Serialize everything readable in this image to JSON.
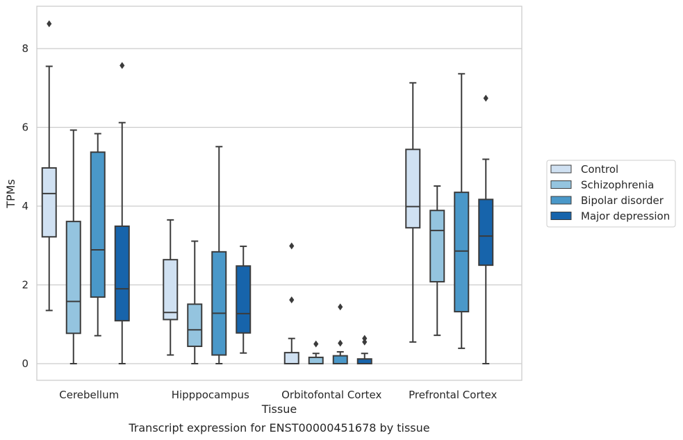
{
  "caption": "Transcript expression for ENST00000451678 by tissue",
  "chart_data": {
    "type": "box",
    "xlabel": "Tissue",
    "ylabel": "TPMs",
    "ylim": [
      -0.4,
      9.1
    ],
    "yticks": [
      0,
      2,
      4,
      6,
      8
    ],
    "categories": [
      "Cerebellum",
      "Hipppocampus",
      "Orbitofontal Cortex",
      "Prefrontal Cortex"
    ],
    "grid": "horizontal",
    "legend_position": "right",
    "series": [
      {
        "name": "Control",
        "color": "#d0e1f2",
        "boxes": [
          {
            "whislo": 1.35,
            "q1": 3.22,
            "med": 4.32,
            "q3": 4.97,
            "whishi": 7.55,
            "fliers": [
              8.63
            ]
          },
          {
            "whislo": 0.22,
            "q1": 1.12,
            "med": 1.3,
            "q3": 2.64,
            "whishi": 3.65,
            "fliers": []
          },
          {
            "whislo": 0.0,
            "q1": 0.0,
            "med": 0.0,
            "q3": 0.28,
            "whishi": 0.64,
            "fliers": [
              1.62,
              2.99
            ]
          },
          {
            "whislo": 0.55,
            "q1": 3.45,
            "med": 3.99,
            "q3": 5.44,
            "whishi": 7.13,
            "fliers": []
          }
        ]
      },
      {
        "name": "Schizophrenia",
        "color": "#94c4df",
        "boxes": [
          {
            "whislo": 0.0,
            "q1": 0.77,
            "med": 1.58,
            "q3": 3.61,
            "whishi": 5.93,
            "fliers": []
          },
          {
            "whislo": 0.0,
            "q1": 0.44,
            "med": 0.86,
            "q3": 1.51,
            "whishi": 3.11,
            "fliers": []
          },
          {
            "whislo": 0.0,
            "q1": 0.0,
            "med": 0.0,
            "q3": 0.16,
            "whishi": 0.26,
            "fliers": [
              0.5
            ]
          },
          {
            "whislo": 0.72,
            "q1": 2.08,
            "med": 3.38,
            "q3": 3.89,
            "whishi": 4.51,
            "fliers": []
          }
        ]
      },
      {
        "name": "Bipolar disorder",
        "color": "#4a98c9",
        "boxes": [
          {
            "whislo": 0.71,
            "q1": 1.69,
            "med": 2.89,
            "q3": 5.37,
            "whishi": 5.84,
            "fliers": []
          },
          {
            "whislo": 0.0,
            "q1": 0.22,
            "med": 1.28,
            "q3": 2.84,
            "whishi": 5.51,
            "fliers": []
          },
          {
            "whislo": 0.0,
            "q1": 0.0,
            "med": 0.0,
            "q3": 0.2,
            "whishi": 0.3,
            "fliers": [
              0.52,
              1.44
            ]
          },
          {
            "whislo": 0.39,
            "q1": 1.32,
            "med": 2.86,
            "q3": 4.35,
            "whishi": 7.36,
            "fliers": []
          }
        ]
      },
      {
        "name": "Major depression",
        "color": "#1764ab",
        "boxes": [
          {
            "whislo": 0.0,
            "q1": 1.09,
            "med": 1.9,
            "q3": 3.49,
            "whishi": 6.12,
            "fliers": [
              7.57
            ]
          },
          {
            "whislo": 0.27,
            "q1": 0.78,
            "med": 1.27,
            "q3": 2.48,
            "whishi": 2.98,
            "fliers": []
          },
          {
            "whislo": 0.0,
            "q1": 0.0,
            "med": 0.0,
            "q3": 0.12,
            "whishi": 0.26,
            "fliers": [
              0.55,
              0.64
            ]
          },
          {
            "whislo": 0.0,
            "q1": 2.5,
            "med": 3.24,
            "q3": 4.17,
            "whishi": 5.19,
            "fliers": [
              6.74
            ]
          }
        ]
      }
    ]
  },
  "colors": {
    "grid": "#cccccc",
    "frame": "#cccccc",
    "box_edge": "#3b3b3b",
    "text": "#262626"
  }
}
